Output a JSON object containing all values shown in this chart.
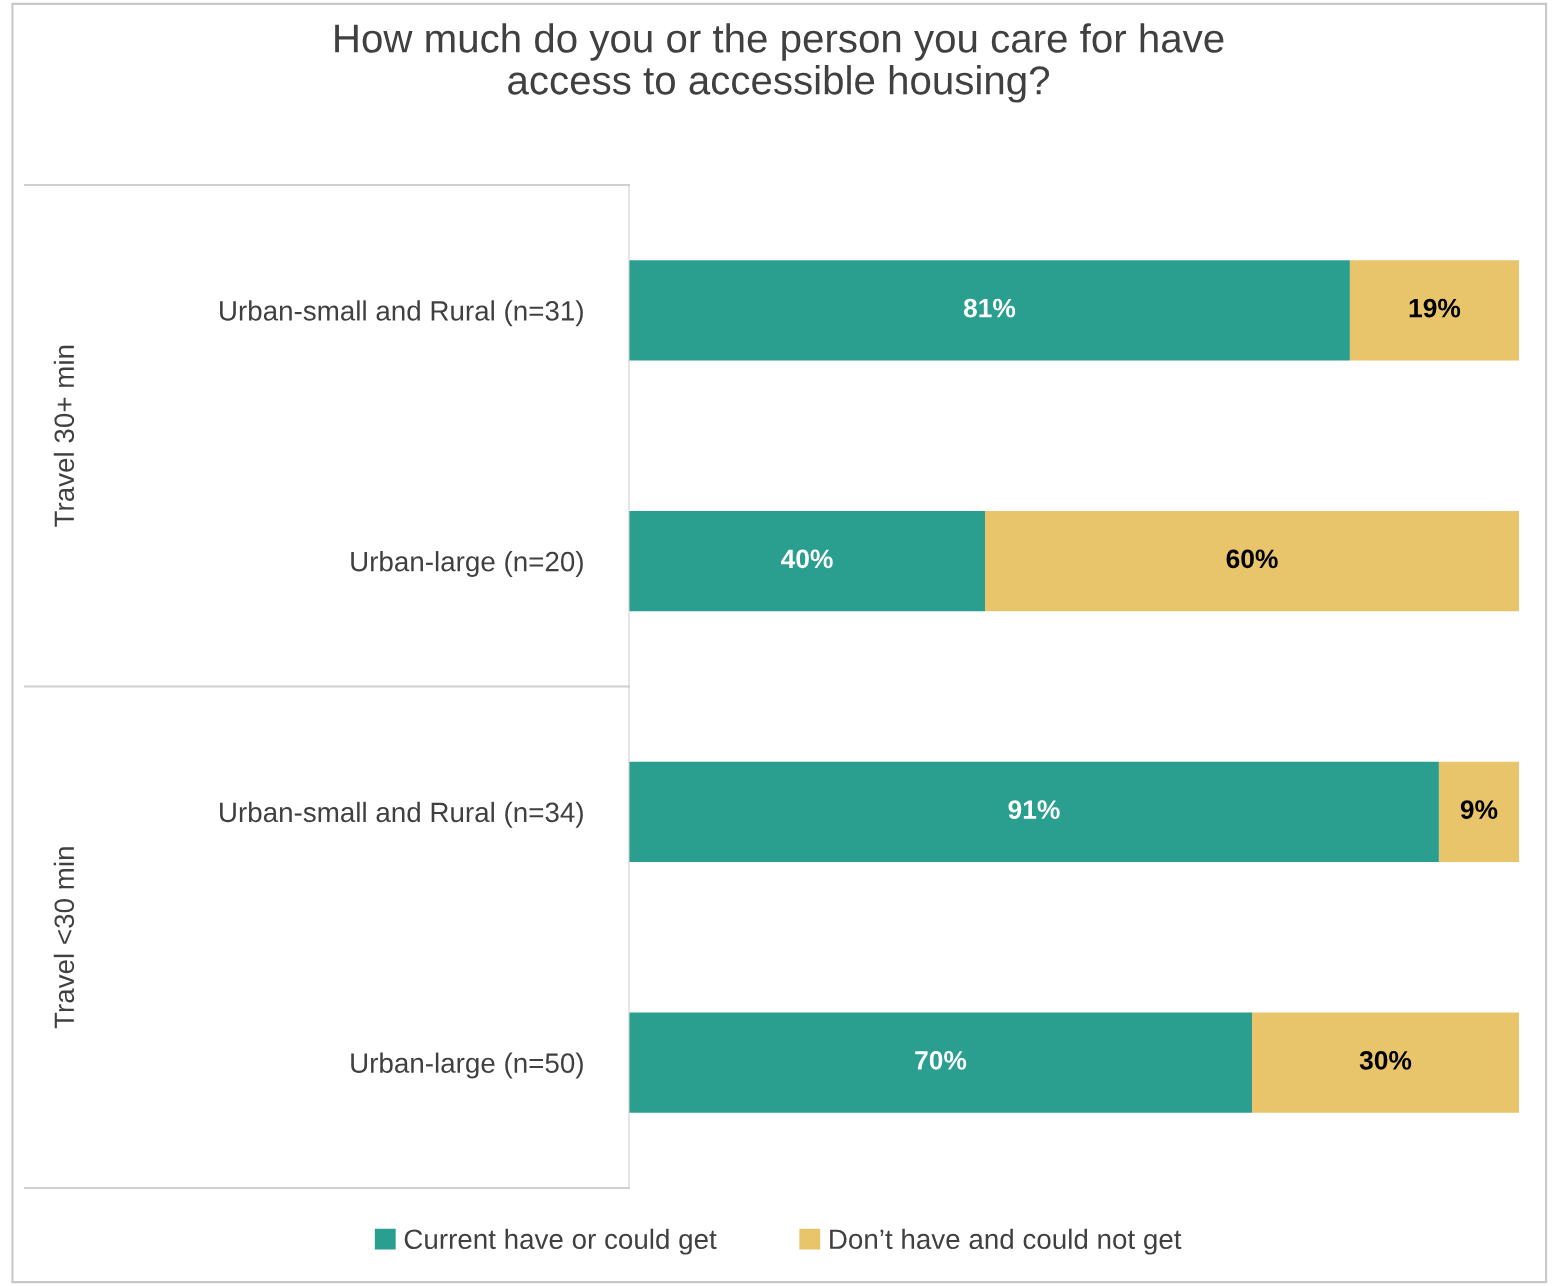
{
  "chart_data": {
    "type": "bar",
    "orientation": "horizontal",
    "stacked": true,
    "title": "How much do you or the person you care for have\naccess to accessible housing?",
    "categories": [
      "Urban-small and Rural (n=31)",
      "Urban-large (n=20)",
      "Urban-small and Rural (n=34)",
      "Urban-large (n=50)"
    ],
    "series": [
      {
        "name": "Current have or could get",
        "color": "#2a9f8f",
        "values": [
          81,
          40,
          91,
          70
        ],
        "value_labels": [
          "81%",
          "40%",
          "91%",
          "70%"
        ]
      },
      {
        "name": "Don’t have and could not get",
        "color": "#e8c46a",
        "values": [
          19,
          60,
          9,
          30
        ],
        "value_labels": [
          "19%",
          "60%",
          "9%",
          "30%"
        ]
      }
    ],
    "annotations": [
      "Travel 30+ min",
      "Travel <30 min"
    ],
    "xlim": [
      0,
      100
    ],
    "tick_labels": "y",
    "grid": false,
    "legend": "bottom"
  }
}
